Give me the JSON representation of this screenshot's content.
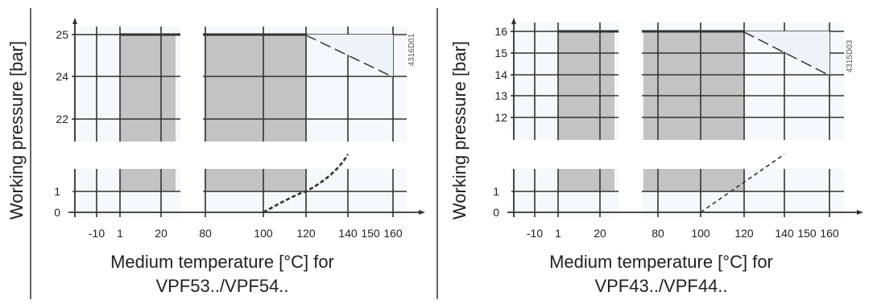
{
  "chart_data": [
    {
      "type": "line",
      "code": "4316D01",
      "ylabel": "Working pressure [bar]",
      "xlabel_line1": "Medium temperature [°C] for",
      "xlabel_line2": "VPF53../VPF54..",
      "x_tick_labels": [
        "-10",
        "1",
        "20",
        "80",
        "100",
        "120",
        "140",
        "150",
        "160"
      ],
      "upper_y_ticks": [
        "22",
        "24",
        "25"
      ],
      "lower_y_ticks": [
        "0",
        "1"
      ],
      "x_axis_break": [
        20,
        80
      ],
      "upper_y_axis_break": [
        22,
        24
      ],
      "max_pressure_series": {
        "x": [
          1,
          20,
          80,
          120,
          160
        ],
        "y": [
          25,
          25,
          25,
          25,
          24
        ]
      },
      "min_pressure_series": {
        "x": [
          100,
          120,
          140
        ],
        "y": [
          0,
          1,
          2.2
        ]
      },
      "shaded_range_x": [
        1,
        120
      ],
      "grid": true
    },
    {
      "type": "line",
      "code": "4315D03",
      "ylabel": "Working pressure [bar]",
      "xlabel_line1": "Medium temperature [°C] for",
      "xlabel_line2": "VPF43../VPF44..",
      "x_tick_labels": [
        "-10",
        "1",
        "20",
        "80",
        "100",
        "120",
        "140",
        "150",
        "160"
      ],
      "upper_y_ticks": [
        "12",
        "13",
        "14",
        "15",
        "16"
      ],
      "lower_y_ticks": [
        "0",
        "1"
      ],
      "x_axis_break": [
        20,
        80
      ],
      "max_pressure_series": {
        "x": [
          1,
          20,
          80,
          120,
          160
        ],
        "y": [
          16,
          16,
          16,
          16,
          14
        ]
      },
      "min_pressure_series": {
        "x": [
          100,
          120,
          140
        ],
        "y": [
          0,
          1,
          2.2
        ]
      },
      "shaded_range_x": [
        1,
        120
      ],
      "grid": true
    }
  ]
}
